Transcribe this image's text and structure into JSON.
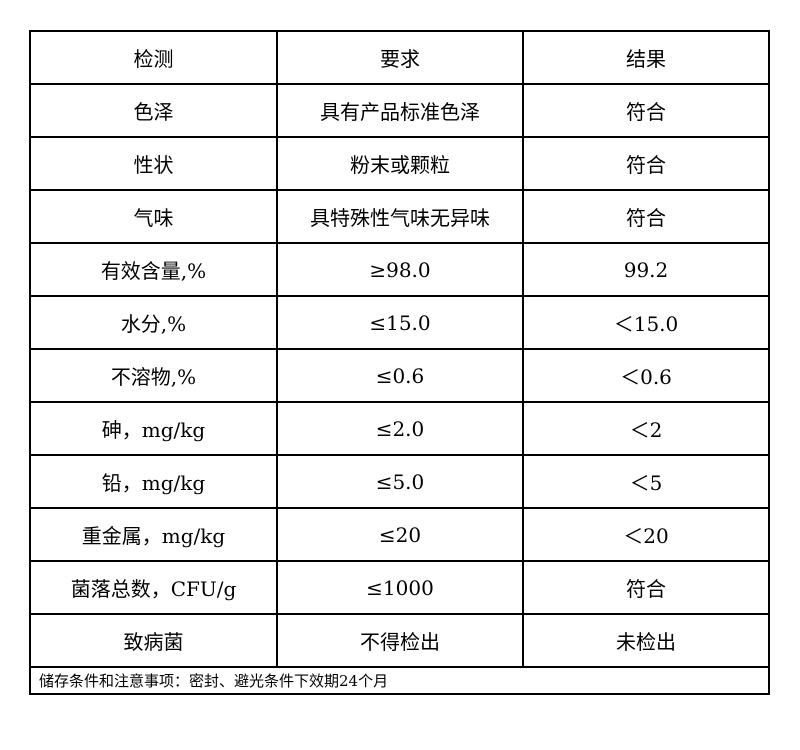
{
  "header": [
    "检测",
    "要求",
    "结果"
  ],
  "rows": [
    [
      "色泽",
      "具有产品标准色泽",
      "符合"
    ],
    [
      "性状",
      "粉末或颗粒",
      "符合"
    ],
    [
      "气味",
      "具特殊性气味无异味",
      "符合"
    ],
    [
      "有效含量,%",
      "≥98.0",
      "99.2"
    ],
    [
      "水分,%",
      "≤15.0",
      "＜15.0"
    ],
    [
      "不溶物,%",
      "≤0.6",
      "＜0.6"
    ],
    [
      "砷，mg/kg",
      "≤2.0",
      "＜2"
    ],
    [
      "铅，mg/kg",
      "≤5.0",
      "＜5"
    ],
    [
      "重金属，mg/kg",
      "≤20",
      "＜20"
    ],
    [
      "菌落总数，CFU/g",
      "≤1000",
      "符合"
    ],
    [
      "致病菌",
      "不得检出",
      "未检出"
    ]
  ],
  "note": "储存条件和注意事项：密封、避光条件下效期24个月"
}
